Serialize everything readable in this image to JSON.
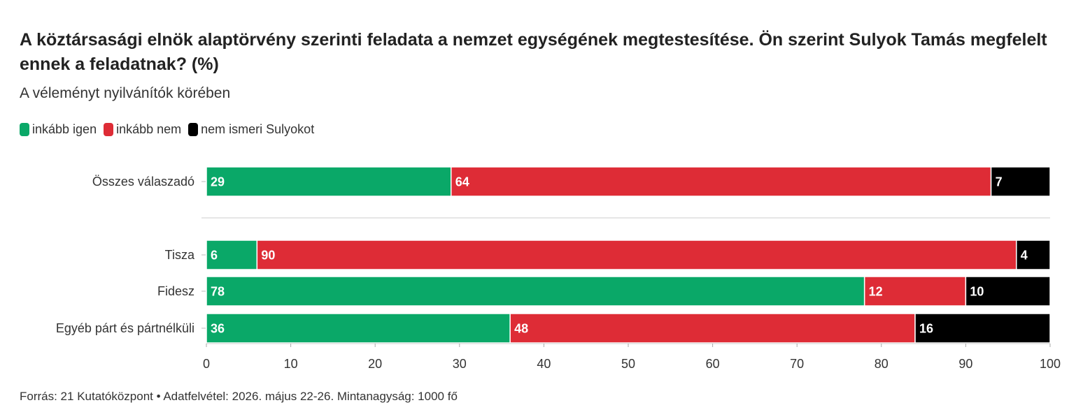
{
  "chart_data": {
    "type": "bar",
    "orientation": "horizontal",
    "stacked": true,
    "title": "A köztársasági elnök alaptörvény szerinti feladata a nemzet egységének megtestesítése. Ön szerint Sulyok Tamás megfelelt ennek a feladatnak? (%)",
    "subtitle": "A véleményt nyilvánítók körében",
    "categories": [
      "Összes válaszadó",
      "Tisza",
      "Fidesz",
      "Egyéb párt és pártnélküli"
    ],
    "series": [
      {
        "name": "inkább igen",
        "color": "#0aa868",
        "values": [
          29,
          6,
          78,
          36
        ]
      },
      {
        "name": "inkább nem",
        "color": "#de2c36",
        "values": [
          64,
          90,
          12,
          48
        ]
      },
      {
        "name": "nem ismeri Sulyokot",
        "color": "#000000",
        "values": [
          7,
          4,
          10,
          16
        ]
      }
    ],
    "xlim": [
      0,
      100
    ],
    "xticks": [
      0,
      10,
      20,
      30,
      40,
      50,
      60,
      70,
      80,
      90,
      100
    ],
    "legend": "top-left",
    "source": "Forrás: 21 Kutatóközpont • Adatfelvétel: 2026. május 22-26. Mintanagyság: 1000 fő"
  }
}
